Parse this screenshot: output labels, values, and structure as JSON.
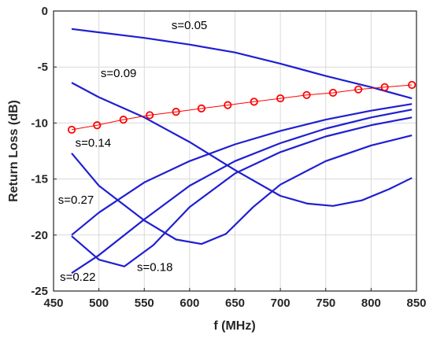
{
  "chart_data": {
    "type": "line",
    "title": "",
    "xlabel": "f (MHz)",
    "ylabel": "Return Loss (dB)",
    "xlim": [
      450,
      850
    ],
    "ylim": [
      -25,
      0
    ],
    "xticks": [
      450,
      500,
      550,
      600,
      650,
      700,
      750,
      800,
      850
    ],
    "yticks": [
      0,
      -5,
      -10,
      -15,
      -20,
      -25
    ],
    "grid": true,
    "series": [
      {
        "name": "s=0.05",
        "color": "#1f1fd1",
        "x": [
          470,
          500,
          550,
          600,
          650,
          700,
          750,
          800,
          845
        ],
        "y": [
          -1.6,
          -1.9,
          -2.4,
          -3.0,
          -3.7,
          -4.7,
          -5.8,
          -6.8,
          -7.8
        ]
      },
      {
        "name": "s=0.09",
        "color": "#1f1fd1",
        "x": [
          470,
          500,
          550,
          600,
          650,
          700,
          730,
          758,
          790,
          820,
          845
        ],
        "y": [
          -6.4,
          -7.7,
          -9.5,
          -11.7,
          -14.2,
          -16.5,
          -17.2,
          -17.4,
          -16.9,
          -15.9,
          -14.9
        ]
      },
      {
        "name": "s=0.14",
        "color": "#1f1fd1",
        "x": [
          470,
          500,
          550,
          585,
          613,
          640,
          670,
          700,
          750,
          800,
          845
        ],
        "y": [
          -12.7,
          -15.6,
          -18.7,
          -20.4,
          -20.8,
          -19.9,
          -17.5,
          -15.5,
          -13.4,
          -12.0,
          -11.1
        ]
      },
      {
        "name": "s=0.18",
        "color": "#1f1fd1",
        "x": [
          470,
          500,
          528,
          560,
          600,
          650,
          700,
          750,
          800,
          845
        ],
        "y": [
          -20.1,
          -22.2,
          -22.8,
          -20.9,
          -17.5,
          -14.5,
          -12.6,
          -11.2,
          -10.2,
          -9.5
        ]
      },
      {
        "name": "s=0.22",
        "color": "#1f1fd1",
        "x": [
          470,
          500,
          550,
          600,
          650,
          700,
          750,
          800,
          845
        ],
        "y": [
          -23.4,
          -21.8,
          -18.6,
          -15.6,
          -13.4,
          -11.8,
          -10.5,
          -9.5,
          -8.8
        ]
      },
      {
        "name": "s=0.27",
        "color": "#1f1fd1",
        "x": [
          470,
          500,
          550,
          600,
          650,
          700,
          750,
          800,
          845
        ],
        "y": [
          -20.0,
          -18.0,
          -15.3,
          -13.4,
          -11.9,
          -10.7,
          -9.7,
          -8.9,
          -8.3
        ]
      },
      {
        "name": "",
        "color": "#ff0000",
        "marker": "circle",
        "x": [
          470,
          498,
          527,
          556,
          585,
          613,
          642,
          671,
          700,
          729,
          758,
          786,
          815,
          845
        ],
        "y": [
          -10.6,
          -10.2,
          -9.7,
          -9.3,
          -9.0,
          -8.7,
          -8.4,
          -8.1,
          -7.8,
          -7.5,
          -7.3,
          -7.0,
          -6.8,
          -6.6
        ]
      }
    ],
    "annotations": [
      {
        "text": "s=0.05",
        "x": 580,
        "y": -1.6
      },
      {
        "text": "s=0.09",
        "x": 502,
        "y": -5.9
      },
      {
        "text": "s=0.14",
        "x": 474,
        "y": -12.1
      },
      {
        "text": "s=0.27",
        "x": 455,
        "y": -17.2
      },
      {
        "text": "s=0.22",
        "x": 457,
        "y": -24.1
      },
      {
        "text": "s=0.18",
        "x": 542,
        "y": -23.2
      }
    ]
  }
}
